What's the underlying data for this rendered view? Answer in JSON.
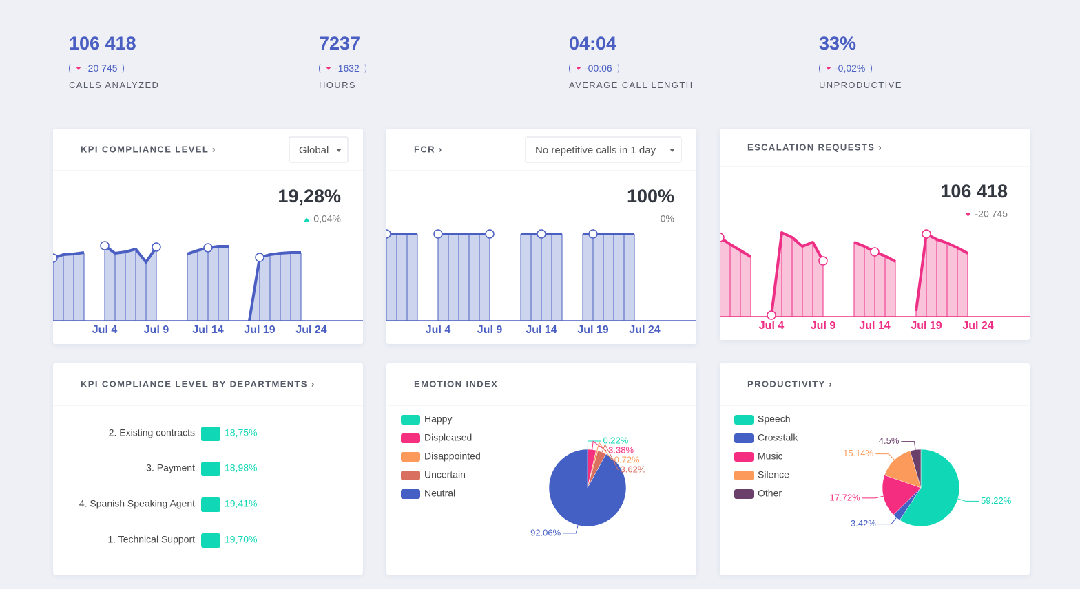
{
  "summary": [
    {
      "value": "106 418",
      "change": "-20 745",
      "label": "CALLS ANALYZED"
    },
    {
      "value": "7237",
      "change": "-1632",
      "label": "HOURS"
    },
    {
      "value": "04:04",
      "change": "-00:06",
      "label": "AVERAGE CALL LENGTH"
    },
    {
      "value": "33%",
      "change": "-0,02%",
      "label": "UNPRODUCTIVE"
    }
  ],
  "chart_data": [
    {
      "type": "bar",
      "title": "KPI COMPLIANCE LEVEL ›",
      "dropdown": "Global",
      "headline": "19,28%",
      "change": "0,04%",
      "change_direction": "up",
      "categories": [
        null,
        null,
        null,
        null,
        null,
        "Jul 4",
        null,
        null,
        null,
        null,
        "Jul 9",
        null,
        null,
        null,
        null,
        "Jul 14",
        null,
        null,
        null,
        null,
        "Jul 19",
        null,
        null,
        null,
        null,
        "Jul 24",
        null,
        null,
        null,
        null,
        null
      ],
      "values": [
        45.5,
        48,
        48.5,
        49.5,
        null,
        54.5,
        49,
        50,
        52,
        42.5,
        53.5,
        null,
        null,
        48.5,
        51,
        53,
        54,
        54,
        null,
        0,
        46,
        48,
        49,
        49.5,
        49.5,
        null,
        null,
        null,
        null,
        null,
        null
      ],
      "color": "#4a5fc1",
      "fill_color": "#cdd4ee",
      "ylim": [
        0,
        100
      ]
    },
    {
      "type": "bar",
      "title": "FCR ›",
      "dropdown": "No repetitive calls in 1 day",
      "headline": "100%",
      "change": "0%",
      "categories": [
        null,
        null,
        null,
        null,
        null,
        "Jul 4",
        null,
        null,
        null,
        null,
        "Jul 9",
        null,
        null,
        null,
        null,
        "Jul 14",
        null,
        null,
        null,
        null,
        "Jul 19",
        null,
        null,
        null,
        null,
        "Jul 24",
        null,
        null,
        null,
        null,
        null
      ],
      "values": [
        63,
        63,
        63,
        63,
        null,
        63,
        63,
        63,
        63,
        63,
        63,
        null,
        null,
        63,
        63,
        63,
        63,
        63,
        null,
        63,
        63,
        63,
        63,
        63,
        63,
        null,
        null,
        null,
        null,
        null,
        null
      ],
      "color": "#4a5fc1",
      "fill_color": "#cdd4ee",
      "ylim": [
        0,
        100
      ]
    },
    {
      "type": "bar",
      "title": "ESCALATION REQUESTS ›",
      "headline": "106 418",
      "change": "-20 745",
      "change_direction": "down",
      "categories": [
        null,
        null,
        null,
        null,
        null,
        "Jul 4",
        null,
        null,
        null,
        null,
        "Jul 9",
        null,
        null,
        null,
        null,
        "Jul 14",
        null,
        null,
        null,
        null,
        "Jul 19",
        null,
        null,
        null,
        null,
        "Jul 24",
        null,
        null,
        null,
        null,
        null
      ],
      "values": [
        57.5,
        52.5,
        48,
        43.5,
        null,
        1,
        61,
        57.5,
        51,
        54,
        40.5,
        null,
        null,
        54,
        51,
        47,
        44,
        40,
        null,
        4,
        60,
        56,
        53.5,
        50,
        46,
        null,
        null,
        null,
        null,
        null,
        null
      ],
      "color": "#ee2f86",
      "fill_color": "#f9c3da",
      "ylim": [
        0,
        100
      ]
    },
    {
      "type": "hbar",
      "title": "KPI COMPLIANCE LEVEL BY DEPARTMENTS ›",
      "categories": [
        "2. Existing contracts",
        "3. Payment",
        "4. Spanish Speaking Agent",
        "1. Technical Support"
      ],
      "values": [
        18.75,
        18.98,
        19.41,
        19.7
      ],
      "value_labels": [
        "18,75%",
        "18,98%",
        "19,41%",
        "19,70%"
      ],
      "color": "#10d7b5"
    },
    {
      "type": "pie",
      "title": "EMOTION INDEX",
      "categories": [
        "Happy",
        "Displeased",
        "Disappointed",
        "Uncertain",
        "Neutral"
      ],
      "values": [
        0.22,
        3.38,
        0.72,
        3.62,
        92.06
      ],
      "value_labels": [
        "0.22%",
        "3.38%",
        "0.72%",
        "3.62%",
        "92.06%"
      ],
      "colors": [
        "#15d8b4",
        "#f5307f",
        "#fb9a5a",
        "#d9705f",
        "#4560c4"
      ]
    },
    {
      "type": "pie",
      "title": "PRODUCTIVITY ›",
      "categories": [
        "Speech",
        "Crosstalk",
        "Music",
        "Silence",
        "Other"
      ],
      "values": [
        59.22,
        3.42,
        17.72,
        15.14,
        4.5
      ],
      "value_labels": [
        "59.22%",
        "3.42%",
        "17.72%",
        "15.14%",
        "4.5%"
      ],
      "colors": [
        "#10d7b5",
        "#4560c4",
        "#f42d80",
        "#fb9a5a",
        "#6a3f6a"
      ]
    }
  ]
}
